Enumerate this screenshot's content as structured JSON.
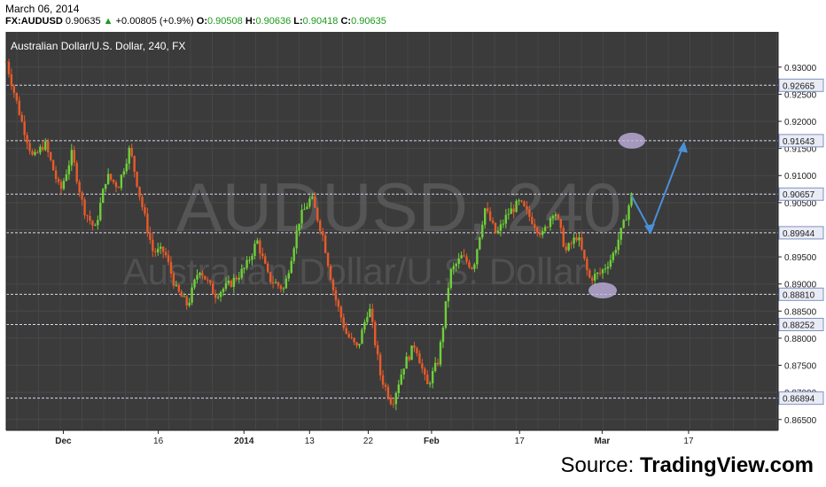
{
  "header": {
    "date": "March 06, 2014",
    "symbol": "FX:AUDUSD",
    "last": "0.90635",
    "change_arrow": "▲",
    "change": "+0.00805 (+0.9%)",
    "open_label": "O:",
    "open": "0.90508",
    "high_label": "H:",
    "high": "0.90636",
    "low_label": "L:",
    "low": "0.90418",
    "close_label": "C:",
    "close": "0.90635"
  },
  "source": {
    "prefix": "Source:",
    "name": "TradingView.com"
  },
  "colors": {
    "background": "#3b3b3b",
    "axis_background": "#ffffff",
    "up_candle": "#6fcf3a",
    "down_candle": "#e85b2a",
    "level_line": "#d8d8f0",
    "arrow": "#4a90d9",
    "ellipse": "#c8b8e8",
    "change_green": "#1a9a1a"
  },
  "chart_data": {
    "type": "candlestick",
    "title": "Australian Dollar/U.S. Dollar, 240, FX",
    "watermark_symbol": "AUDUSD, 240",
    "watermark_name": "Australian Dollar/U.S. Dollar",
    "ylim": [
      0.863,
      0.9365
    ],
    "y_ticks": [
      "0.93000",
      "0.92500",
      "0.92000",
      "0.91500",
      "0.91000",
      "0.90500",
      "0.90000",
      "0.89500",
      "0.89000",
      "0.88500",
      "0.88000",
      "0.87500",
      "0.87000",
      "0.86500"
    ],
    "x_ticks": [
      "Dec",
      "16",
      "2014",
      "13",
      "22",
      "Feb",
      "17",
      "Mar",
      "17"
    ],
    "x_tick_positions": [
      0.074,
      0.197,
      0.308,
      0.393,
      0.469,
      0.551,
      0.665,
      0.772,
      0.884
    ],
    "levels": [
      {
        "value": 0.92665,
        "label": "0.92665"
      },
      {
        "value": 0.91643,
        "label": "0.91643"
      },
      {
        "value": 0.90657,
        "label": "0.90657"
      },
      {
        "value": 0.89944,
        "label": "0.89944"
      },
      {
        "value": 0.8881,
        "label": "0.88810"
      },
      {
        "value": 0.88252,
        "label": "0.88252"
      },
      {
        "value": 0.86894,
        "label": "0.86894"
      }
    ],
    "price_path": [
      [
        0.0,
        0.931
      ],
      [
        0.02,
        0.92
      ],
      [
        0.035,
        0.913
      ],
      [
        0.05,
        0.916
      ],
      [
        0.07,
        0.907
      ],
      [
        0.085,
        0.914
      ],
      [
        0.1,
        0.904
      ],
      [
        0.115,
        0.9
      ],
      [
        0.13,
        0.91
      ],
      [
        0.145,
        0.908
      ],
      [
        0.16,
        0.915
      ],
      [
        0.175,
        0.905
      ],
      [
        0.19,
        0.896
      ],
      [
        0.205,
        0.896
      ],
      [
        0.22,
        0.889
      ],
      [
        0.235,
        0.886
      ],
      [
        0.25,
        0.893
      ],
      [
        0.27,
        0.888
      ],
      [
        0.29,
        0.89
      ],
      [
        0.31,
        0.893
      ],
      [
        0.325,
        0.898
      ],
      [
        0.34,
        0.891
      ],
      [
        0.36,
        0.889
      ],
      [
        0.38,
        0.902
      ],
      [
        0.395,
        0.906
      ],
      [
        0.41,
        0.899
      ],
      [
        0.425,
        0.888
      ],
      [
        0.44,
        0.881
      ],
      [
        0.455,
        0.878
      ],
      [
        0.47,
        0.886
      ],
      [
        0.485,
        0.873
      ],
      [
        0.5,
        0.868
      ],
      [
        0.515,
        0.875
      ],
      [
        0.53,
        0.879
      ],
      [
        0.545,
        0.871
      ],
      [
        0.56,
        0.876
      ],
      [
        0.575,
        0.892
      ],
      [
        0.59,
        0.895
      ],
      [
        0.605,
        0.893
      ],
      [
        0.62,
        0.904
      ],
      [
        0.635,
        0.899
      ],
      [
        0.65,
        0.903
      ],
      [
        0.665,
        0.905
      ],
      [
        0.68,
        0.902
      ],
      [
        0.695,
        0.899
      ],
      [
        0.71,
        0.904
      ],
      [
        0.725,
        0.896
      ],
      [
        0.74,
        0.899
      ],
      [
        0.755,
        0.891
      ],
      [
        0.77,
        0.892
      ],
      [
        0.785,
        0.895
      ],
      [
        0.8,
        0.901
      ],
      [
        0.81,
        0.9063
      ]
    ]
  }
}
